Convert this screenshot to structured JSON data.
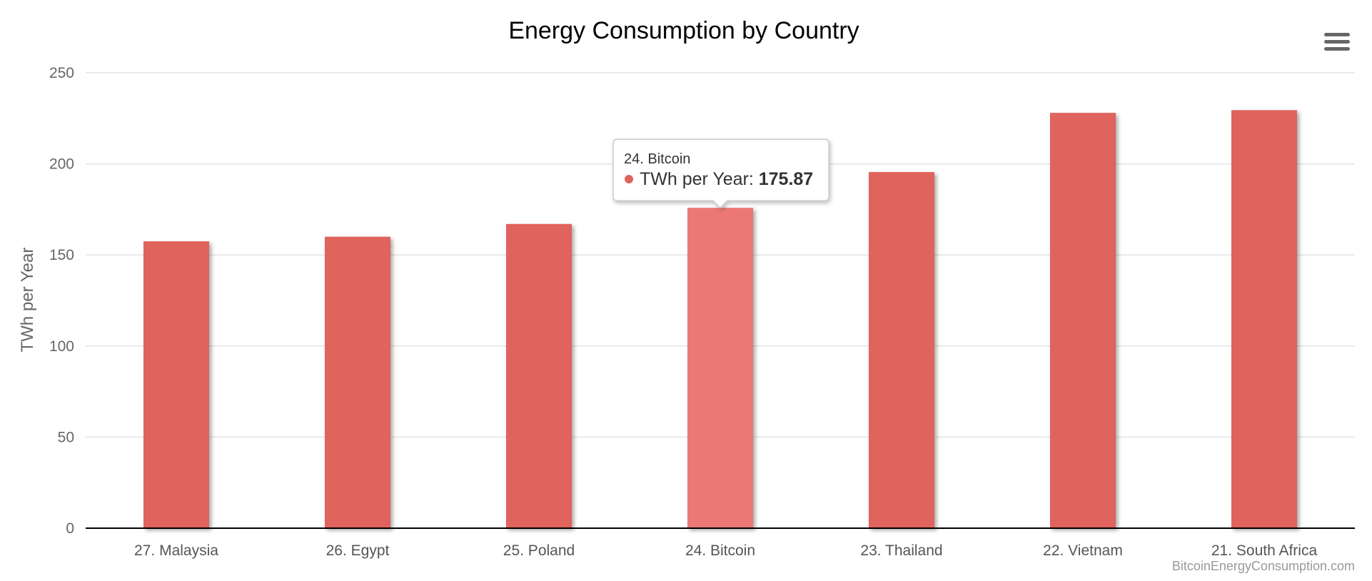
{
  "chart_data": {
    "type": "bar",
    "title": "Energy Consumption by Country",
    "ylabel": "TWh per Year",
    "xlabel": "",
    "ylim": [
      0,
      250
    ],
    "yticks": [
      0,
      50,
      100,
      150,
      200,
      250
    ],
    "categories": [
      "27. Malaysia",
      "26. Egypt",
      "25. Poland",
      "24. Bitcoin",
      "23. Thailand",
      "22. Vietnam",
      "21. South Africa"
    ],
    "series": [
      {
        "name": "TWh per Year",
        "values": [
          157.5,
          160,
          167,
          175.87,
          195.5,
          228,
          229.5
        ]
      }
    ],
    "highlight_index": 3,
    "grid": true,
    "legend": "none"
  },
  "tooltip": {
    "header": "24. Bitcoin",
    "series_label": "TWh per Year: ",
    "value": "175.87"
  },
  "colors": {
    "bar": "#e0635d",
    "bar_highlight": "#ec7874",
    "tooltip_marker": "#e0635d"
  },
  "credit": "BitcoinEnergyConsumption.com",
  "menu": {
    "icon": "hamburger-icon"
  }
}
